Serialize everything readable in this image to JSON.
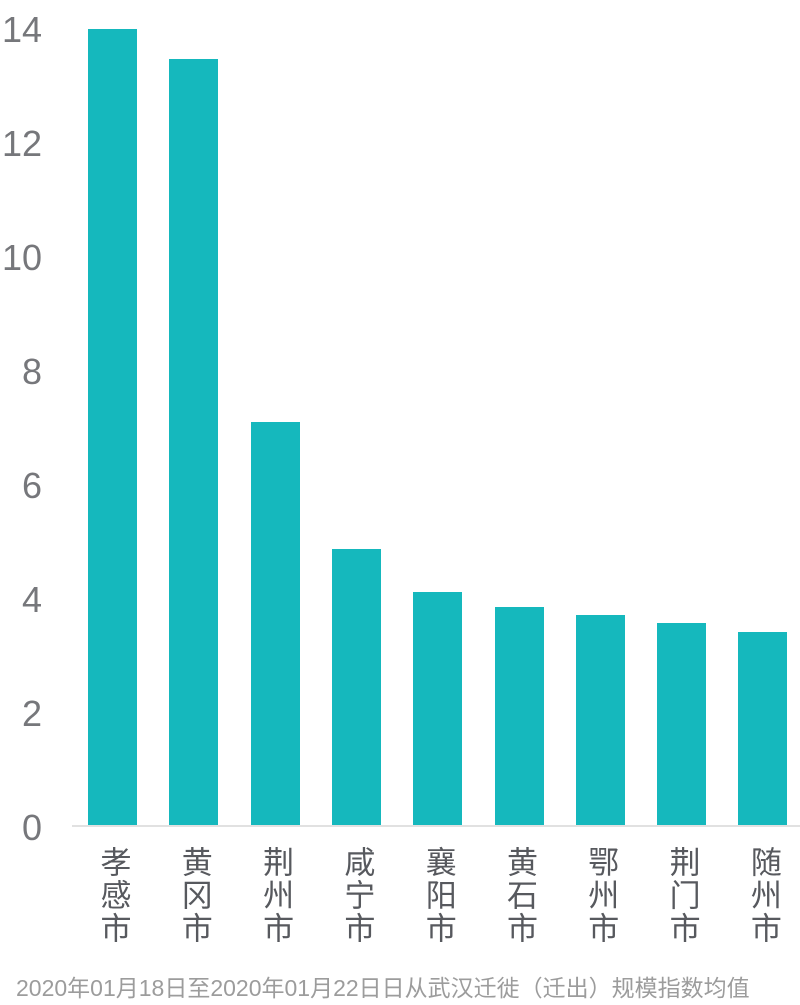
{
  "chart_data": {
    "type": "bar",
    "title": "",
    "caption": "2020年01月18日至2020年01月22日日从武汉迁徙（迁出）规模指数均值",
    "categories": [
      "孝感市",
      "黄冈市",
      "荆州市",
      "咸宁市",
      "襄阳市",
      "黄石市",
      "鄂州市",
      "荆门市",
      "随州市"
    ],
    "values": [
      13.98,
      13.46,
      7.08,
      4.86,
      4.1,
      3.84,
      3.7,
      3.56,
      3.41
    ],
    "xlabel": "",
    "ylabel": "",
    "yticks": [
      0,
      2,
      4,
      6,
      8,
      10,
      12,
      14
    ],
    "ylim": [
      0,
      14
    ],
    "grid": false,
    "legend_position": "none",
    "bar_color": "#15b8bd"
  },
  "style": {
    "background_color": "#ffffff",
    "bar_color": "#15b8bd",
    "tick_label_color": "#76777b",
    "category_label_color": "#57595e",
    "caption_color": "#9c9c9c",
    "axis_line_color": "#e1e1e1"
  }
}
